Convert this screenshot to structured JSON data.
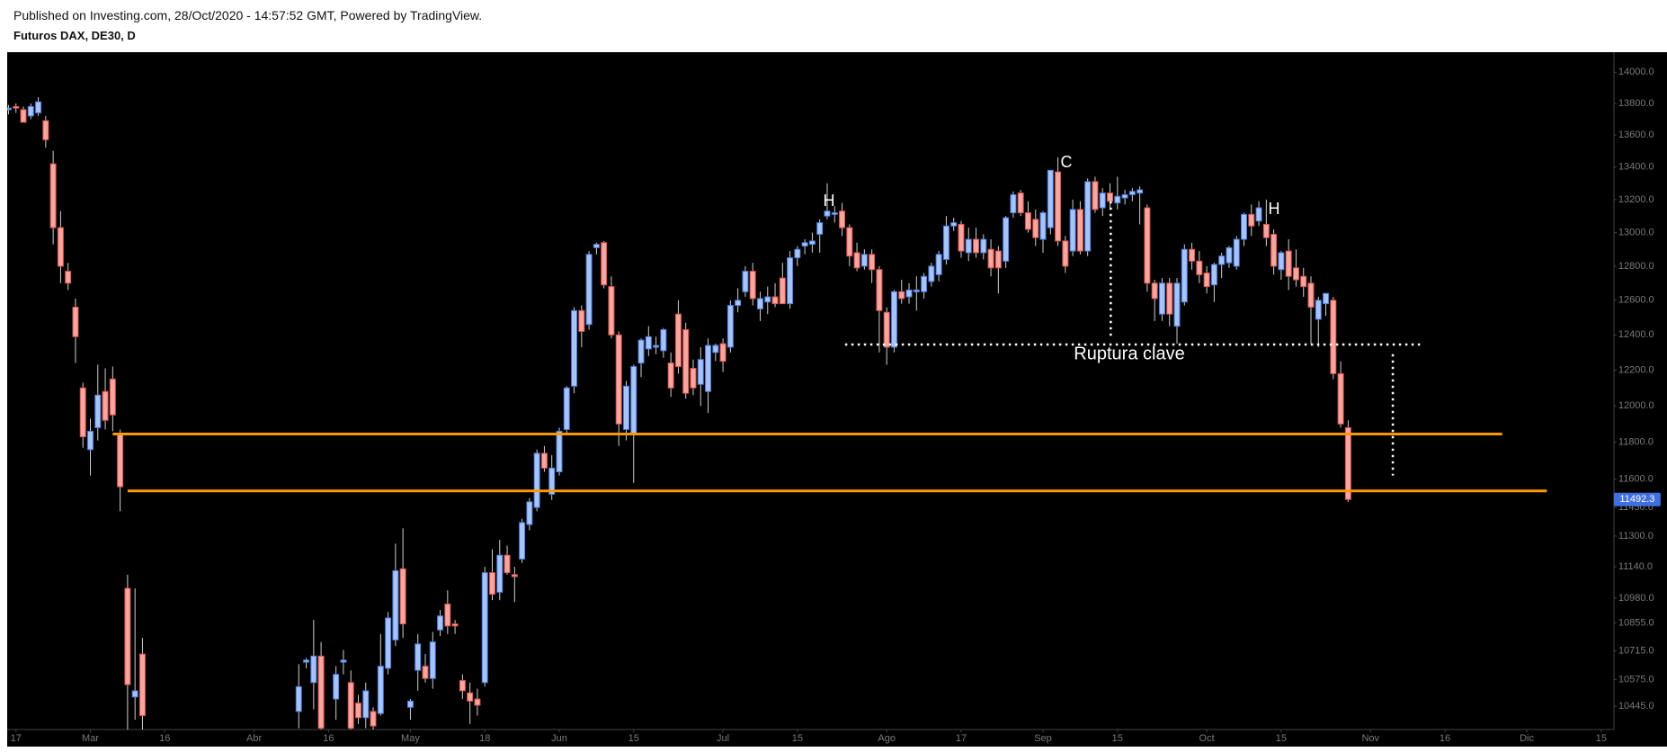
{
  "header": {
    "published": "Published on Investing.com, 28/Oct/2020 - 14:57:52 GMT, Powered by TradingView.",
    "symbol": "Futuros DAX, DE30, D"
  },
  "chart_data": {
    "type": "candlestick",
    "log_scale": true,
    "up_color": "#a8c4f6",
    "up_border": "#4a7de0",
    "down_color": "#f4a6a0",
    "down_border": "#e0524a",
    "wick_color": "#cfcfcf",
    "last_price_color": "#3f6fe0",
    "xlim": [
      -0.14,
      215.7
    ],
    "ylim": [
      10333,
      14124
    ],
    "yticks": [
      {
        "value": 14000,
        "label": "14000.0"
      },
      {
        "value": 13800,
        "label": "13800.0"
      },
      {
        "value": 13600,
        "label": "13600.0"
      },
      {
        "value": 13400,
        "label": "13400.0"
      },
      {
        "value": 13200,
        "label": "13200.0"
      },
      {
        "value": 13000,
        "label": "13000.0"
      },
      {
        "value": 12800,
        "label": "12800.0"
      },
      {
        "value": 12600,
        "label": "12600.0"
      },
      {
        "value": 12400,
        "label": "12400.0"
      },
      {
        "value": 12200,
        "label": "12200.0"
      },
      {
        "value": 12000,
        "label": "12000.0"
      },
      {
        "value": 11800,
        "label": "11800.0"
      },
      {
        "value": 11600,
        "label": "11600.0"
      },
      {
        "value": 11450,
        "label": "11450.0"
      },
      {
        "value": 11300,
        "label": "11300.0"
      },
      {
        "value": 11140,
        "label": "11140.0"
      },
      {
        "value": 10980,
        "label": "10980.0"
      },
      {
        "value": 10855,
        "label": "10855.0"
      },
      {
        "value": 10715,
        "label": "10715.0"
      },
      {
        "value": 10575,
        "label": "10575.0"
      },
      {
        "value": 10445,
        "label": "10445.0"
      }
    ],
    "xticks": [
      {
        "value": 1,
        "label": "17"
      },
      {
        "value": 11,
        "label": "Mar"
      },
      {
        "value": 21,
        "label": "16"
      },
      {
        "value": 33,
        "label": "Abr"
      },
      {
        "value": 43,
        "label": "16"
      },
      {
        "value": 54,
        "label": "May"
      },
      {
        "value": 64,
        "label": "18"
      },
      {
        "value": 74,
        "label": "Jun"
      },
      {
        "value": 84,
        "label": "15"
      },
      {
        "value": 96,
        "label": "Jul"
      },
      {
        "value": 106,
        "label": "15"
      },
      {
        "value": 118,
        "label": "Ago"
      },
      {
        "value": 128,
        "label": "17"
      },
      {
        "value": 139,
        "label": "Sep"
      },
      {
        "value": 149,
        "label": "15"
      },
      {
        "value": 161,
        "label": "Oct"
      },
      {
        "value": 171,
        "label": "15"
      },
      {
        "value": 183,
        "label": "Nov"
      },
      {
        "value": 193,
        "label": "16"
      },
      {
        "value": 204,
        "label": "Dic"
      },
      {
        "value": 214,
        "label": "15"
      }
    ],
    "x": [
      0,
      1,
      2,
      3,
      4,
      5,
      6,
      7,
      8,
      9,
      10,
      11,
      12,
      13,
      14,
      15,
      16,
      17,
      18,
      39,
      40,
      41,
      42,
      44,
      45,
      46,
      47,
      48,
      49,
      50,
      51,
      52,
      53,
      54,
      55,
      56,
      57,
      58,
      59,
      60,
      61,
      62,
      63,
      64,
      65,
      66,
      67,
      68,
      69,
      70,
      71,
      72,
      73,
      74,
      75,
      76,
      77,
      78,
      79,
      80,
      81,
      82,
      83,
      84,
      85,
      86,
      87,
      88,
      89,
      90,
      91,
      92,
      93,
      94,
      95,
      96,
      97,
      98,
      99,
      100,
      101,
      102,
      103,
      104,
      105,
      106,
      107,
      108,
      109,
      110,
      111,
      112,
      113,
      114,
      115,
      116,
      117,
      118,
      119,
      120,
      121,
      122,
      123,
      124,
      125,
      126,
      127,
      128,
      129,
      130,
      131,
      132,
      133,
      134,
      135,
      136,
      137,
      138,
      139,
      140,
      141,
      142,
      143,
      144,
      145,
      146,
      147,
      148,
      149,
      150,
      151,
      152,
      153,
      154,
      155,
      156,
      157,
      158,
      159,
      160,
      161,
      162,
      163,
      164,
      165,
      166,
      167,
      168,
      169,
      170,
      171,
      172,
      173,
      174,
      175,
      176,
      177,
      178,
      179,
      180
    ],
    "open": [
      13760,
      13780,
      13760,
      13720,
      13740,
      13690,
      13420,
      13030,
      12770,
      12560,
      12100,
      11760,
      11880,
      12080,
      12150,
      11840,
      11030,
      10490,
      10700,
      10420,
      10660,
      10560,
      10690,
      10480,
      10660,
      10560,
      10460,
      10390,
      10420,
      10410,
      10630,
      10770,
      11130,
      10440,
      10620,
      10640,
      10580,
      10820,
      10950,
      10850,
      10570,
      10510,
      10480,
      10560,
      11110,
      11010,
      11200,
      11100,
      11180,
      11360,
      11450,
      11740,
      11520,
      11640,
      11870,
      12110,
      12540,
      12460,
      12910,
      12940,
      12680,
      12400,
      11870,
      11840,
      12240,
      12320,
      12330,
      12310,
      12240,
      12520,
      12430,
      12210,
      12120,
      12080,
      12300,
      12350,
      12330,
      12570,
      12650,
      12770,
      12550,
      12590,
      12620,
      12730,
      12580,
      12850,
      12920,
      12930,
      12990,
      13100,
      13110,
      13130,
      13030,
      12880,
      12800,
      12870,
      12780,
      12530,
      12330,
      12650,
      12620,
      12650,
      12650,
      12710,
      12750,
      12840,
      13040,
      13050,
      12880,
      12960,
      12880,
      12900,
      12890,
      12830,
      13120,
      13240,
      13120,
      13080,
      12960,
      13030,
      13370,
      12950,
      12890,
      13140,
      12890,
      13310,
      13150,
      13240,
      13180,
      13210,
      13230,
      13240,
      13150,
      12700,
      12520,
      12700,
      12450,
      12590,
      12900,
      12830,
      12760,
      12690,
      12810,
      12820,
      12800,
      12960,
      13110,
      13070,
      13050,
      12990,
      12780,
      12890,
      12790,
      12740,
      12700,
      12490,
      12580,
      12600,
      12180,
      11880
    ],
    "high": [
      13790,
      13800,
      13780,
      13800,
      13840,
      13720,
      13500,
      13130,
      12820,
      12610,
      12130,
      11930,
      12230,
      12210,
      12220,
      11870,
      11100,
      11030,
      10780,
      10650,
      10680,
      10870,
      10760,
      10640,
      10720,
      10620,
      10500,
      10560,
      10440,
      10800,
      10910,
      11260,
      11340,
      10480,
      10800,
      10700,
      10810,
      10920,
      11020,
      10870,
      10600,
      10560,
      10530,
      11140,
      11230,
      11280,
      11250,
      11140,
      11390,
      11500,
      11760,
      11780,
      11730,
      11880,
      12110,
      12560,
      12570,
      12890,
      12940,
      12950,
      12740,
      12420,
      12140,
      12230,
      12380,
      12450,
      12390,
      12440,
      12300,
      12600,
      12470,
      12260,
      12330,
      12380,
      12350,
      12380,
      12600,
      12670,
      12800,
      12820,
      12650,
      12680,
      12700,
      12820,
      12890,
      12920,
      12960,
      13000,
      13080,
      13300,
      13160,
      13180,
      13050,
      12940,
      12900,
      12900,
      12800,
      12560,
      12660,
      12720,
      12700,
      12740,
      12760,
      12820,
      12890,
      13100,
      13090,
      13070,
      13030,
      13030,
      12990,
      12960,
      12920,
      13100,
      13250,
      13260,
      13190,
      13140,
      13130,
      13380,
      13460,
      12980,
      13200,
      13190,
      13330,
      13340,
      13270,
      13300,
      13340,
      13260,
      13270,
      13280,
      13170,
      12720,
      12730,
      12730,
      12730,
      12930,
      12940,
      12890,
      12800,
      12820,
      12880,
      12920,
      12980,
      13120,
      13170,
      13190,
      13200,
      13020,
      12890,
      12960,
      12900,
      12790,
      12740,
      12620,
      12640,
      12620,
      12250,
      11920
    ],
    "low": [
      13730,
      13740,
      13680,
      13700,
      13720,
      13520,
      12930,
      12700,
      12660,
      12240,
      11770,
      11620,
      11810,
      11870,
      11860,
      11430,
      10300,
      10380,
      10300,
      10340,
      10630,
      10430,
      10330,
      10380,
      10600,
      10330,
      10360,
      10340,
      10330,
      10400,
      10600,
      10740,
      10780,
      10380,
      10520,
      10560,
      10530,
      10790,
      10800,
      10800,
      10480,
      10360,
      10400,
      10540,
      10970,
      10970,
      11100,
      10960,
      11160,
      11330,
      11430,
      11640,
      11490,
      11620,
      11840,
      12070,
      12330,
      12430,
      12870,
      12670,
      12380,
      11780,
      11810,
      11580,
      12160,
      12280,
      12290,
      12270,
      12050,
      12180,
      12040,
      12060,
      12000,
      11960,
      12250,
      12190,
      12300,
      12530,
      12620,
      12570,
      12480,
      12520,
      12560,
      12580,
      12550,
      12800,
      12870,
      12880,
      12880,
      13080,
      13060,
      12980,
      12800,
      12770,
      12780,
      12700,
      12300,
      12230,
      12300,
      12580,
      12580,
      12540,
      12610,
      12680,
      12710,
      12810,
      13010,
      12850,
      12830,
      12850,
      12840,
      12740,
      12640,
      12790,
      13090,
      13100,
      13000,
      12920,
      12880,
      12990,
      12920,
      12760,
      12860,
      12870,
      12860,
      13120,
      13100,
      13150,
      13140,
      13170,
      13190,
      13050,
      12650,
      12480,
      12480,
      12450,
      12350,
      12570,
      12780,
      12700,
      12640,
      12590,
      12730,
      12790,
      12780,
      12920,
      12980,
      13040,
      12920,
      12750,
      12720,
      12660,
      12680,
      12620,
      12350,
      12330,
      12510,
      12150,
      11880,
      11480
    ],
    "close": [
      13770,
      13770,
      13680,
      13780,
      13810,
      13570,
      13030,
      12800,
      12700,
      12390,
      11830,
      11860,
      12060,
      11920,
      11950,
      11560,
      10550,
      10520,
      10400,
      10540,
      10670,
      10690,
      10340,
      10600,
      10670,
      10340,
      10390,
      10520,
      10350,
      10640,
      10880,
      11120,
      10850,
      10470,
      10750,
      10580,
      10760,
      10890,
      10840,
      10840,
      10520,
      10470,
      10450,
      11110,
      11000,
      11200,
      11110,
      11090,
      11370,
      11480,
      11740,
      11660,
      11660,
      11860,
      12100,
      12540,
      12420,
      12870,
      12930,
      12690,
      12400,
      11900,
      12110,
      12220,
      12370,
      12390,
      12340,
      12430,
      12100,
      12220,
      12070,
      12100,
      12260,
      12340,
      12340,
      12250,
      12570,
      12600,
      12770,
      12610,
      12610,
      12620,
      12580,
      12580,
      12850,
      12900,
      12940,
      12950,
      13060,
      13130,
      13120,
      13030,
      12860,
      12790,
      12870,
      12780,
      12540,
      12330,
      12650,
      12610,
      12660,
      12660,
      12740,
      12800,
      12870,
      13040,
      13060,
      12890,
      12960,
      12880,
      12960,
      12790,
      12790,
      13090,
      13230,
      13120,
      13020,
      12970,
      13120,
      13380,
      12950,
      12800,
      13140,
      12890,
      13310,
      13140,
      13240,
      13190,
      13220,
      13230,
      13250,
      13260,
      12700,
      12610,
      12700,
      12520,
      12700,
      12900,
      12830,
      12750,
      12680,
      12810,
      12860,
      12910,
      12960,
      13110,
      13040,
      13150,
      12970,
      12800,
      12880,
      12740,
      12720,
      12680,
      12560,
      12600,
      12640,
      12180,
      11900,
      11492.3
    ],
    "levels": [
      {
        "value": 11845,
        "from": 14,
        "to": 200.7,
        "color": "#ff9800"
      },
      {
        "value": 11538,
        "from": 16,
        "to": 206.7,
        "color": "#ff9800"
      }
    ],
    "neckline": {
      "value": 12345,
      "from": 112.4,
      "to": 190,
      "color": "#ffffff"
    },
    "measures": [
      {
        "x": 148.1,
        "from": 13190,
        "to": 12380,
        "color": "#ffffff"
      },
      {
        "x": 186,
        "from": 12290,
        "to": 11620,
        "color": "#ffffff"
      }
    ],
    "annotations": {
      "break_label": "Ruptura clave",
      "left_shoulder": "H",
      "head": "C",
      "right_shoulder": "H"
    }
  }
}
